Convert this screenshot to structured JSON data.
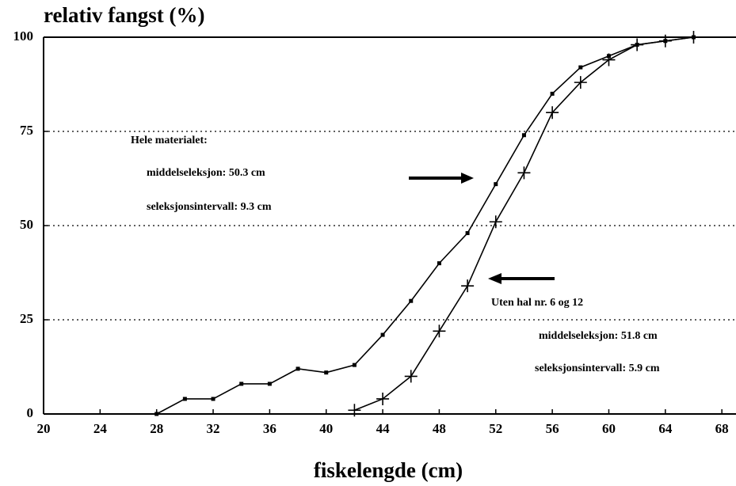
{
  "chart_data": {
    "type": "line",
    "title": "relativ fangst (%)",
    "x_label": "fiskelengde (cm)",
    "xlim": [
      20,
      69
    ],
    "xticks": [
      20,
      24,
      28,
      32,
      36,
      40,
      44,
      48,
      52,
      56,
      60,
      64,
      68
    ],
    "ylim": [
      0,
      100
    ],
    "yticks": [
      0,
      25,
      50,
      75,
      100
    ],
    "grid": true,
    "series": [
      {
        "color": "#000000",
        "marker": "square",
        "x": [
          28,
          30,
          32,
          34,
          36,
          38,
          40,
          42,
          44,
          46,
          48,
          50,
          52,
          54,
          56,
          58,
          60,
          62,
          64,
          66
        ],
        "values": [
          0,
          4,
          4,
          8,
          8,
          12,
          11,
          13,
          21,
          30,
          40,
          48,
          61,
          74,
          85,
          92,
          95,
          98,
          99,
          100
        ]
      },
      {
        "color": "#000000",
        "marker": "plus",
        "x": [
          42,
          44,
          46,
          48,
          50,
          52,
          54,
          56,
          58,
          60,
          62,
          64,
          66
        ],
        "values": [
          1,
          4,
          10,
          22,
          34,
          51,
          64,
          80,
          88,
          94,
          98,
          99,
          100
        ]
      }
    ],
    "annotations": [
      "Hele materialet:",
      "middelseleksjon: 50.3 cm",
      "seleksjonsintervall: 9.3 cm",
      "Uten hal nr. 6 og 12",
      "middelseleksjon: 51.8 cm",
      "seleksjonsintervall: 5.9 cm"
    ]
  }
}
